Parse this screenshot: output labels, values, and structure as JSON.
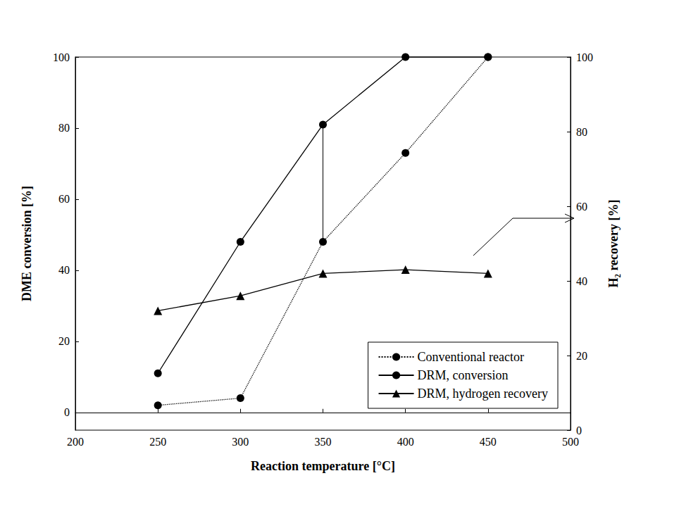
{
  "chart_data": {
    "type": "line",
    "x": [
      250,
      300,
      350,
      400,
      450
    ],
    "xlabel": "Reaction temperature [°C]",
    "ylabel": "DME conversion [%]",
    "y2label": "H₂ recovery [%]",
    "xlim": [
      200,
      500
    ],
    "xticks": [
      200,
      250,
      300,
      350,
      400,
      450,
      500
    ],
    "ylim": [
      -5,
      100
    ],
    "yticks": [
      0,
      20,
      40,
      60,
      80,
      100
    ],
    "y2lim": [
      0,
      100
    ],
    "y2ticks": [
      0,
      20,
      40,
      60,
      80,
      100
    ],
    "grid": false,
    "legend": "lower right",
    "series": [
      {
        "name": "Conventional reactor",
        "color": "#000000",
        "marker": "circle",
        "line_style": "dotted",
        "values": [
          2,
          4,
          48,
          73,
          100
        ]
      },
      {
        "name": "DRM, conversion",
        "color": "#000000",
        "marker": "circle",
        "line_style": "solid",
        "values": [
          11,
          48,
          81,
          100,
          100
        ]
      },
      {
        "name": "DRM, hydrogen recovery",
        "color": "#000000",
        "marker": "triangle",
        "line_style": "solid",
        "axis": "y2",
        "values": [
          32,
          36,
          42,
          43,
          42
        ]
      }
    ]
  }
}
